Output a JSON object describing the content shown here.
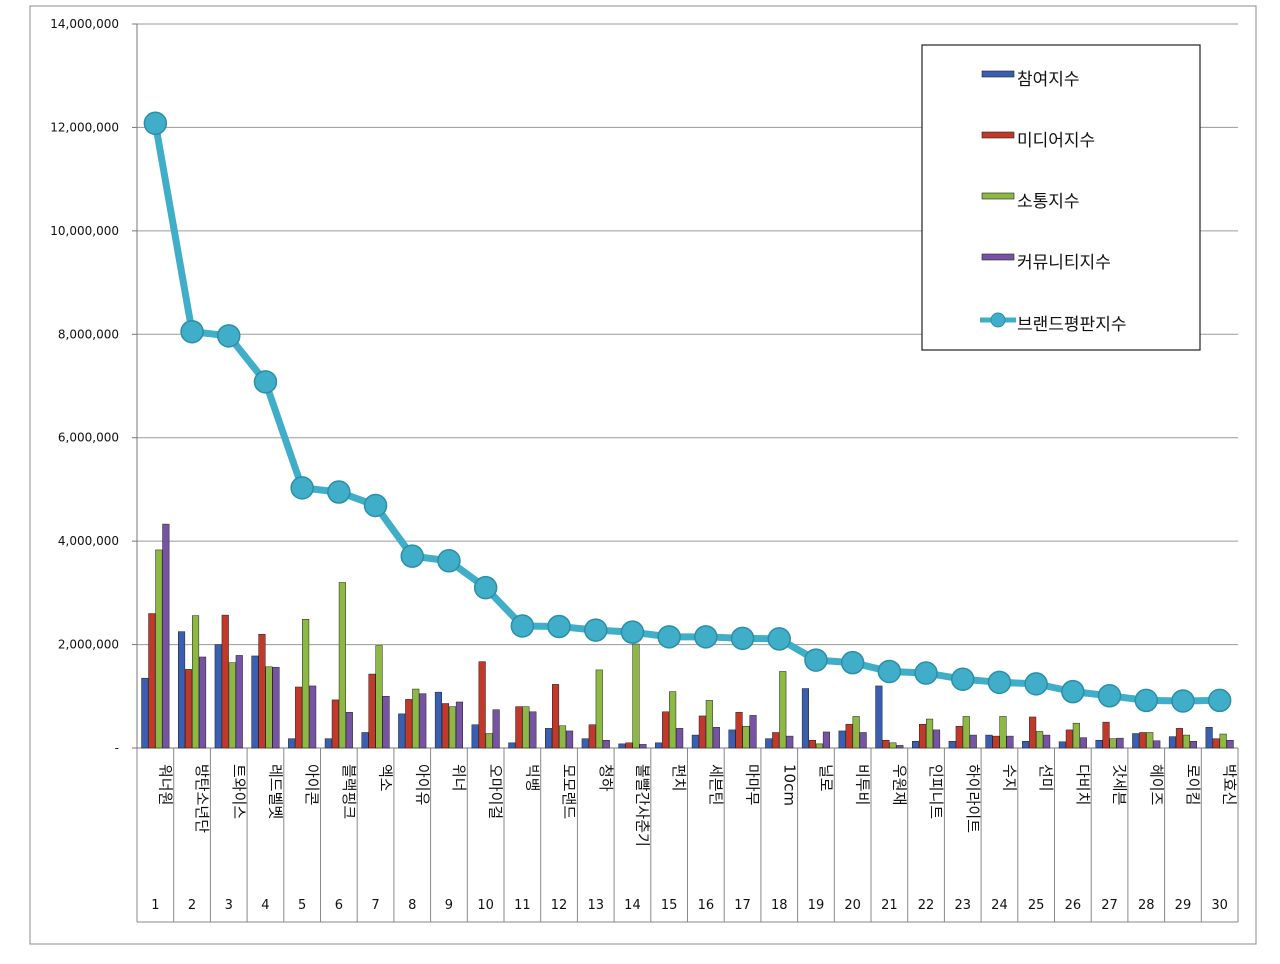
{
  "chart_data": {
    "type": "bar",
    "ylim": [
      0,
      14000000
    ],
    "y_ticks": [
      "-",
      "2,000,000",
      "4,000,000",
      "6,000,000",
      "8,000,000",
      "10,000,000",
      "12,000,000",
      "14,000,000"
    ],
    "grid": true,
    "legend_position": "top-right",
    "categories": [
      "워너원",
      "방탄소년단",
      "트와이스",
      "레드벨벳",
      "아이콘",
      "블랙핑크",
      "엑소",
      "아이유",
      "위너",
      "오마이걸",
      "빅뱅",
      "모모랜드",
      "청하",
      "볼빨간사춘기",
      "펀치",
      "세븐틴",
      "마마무",
      "10cm",
      "닐로",
      "비투비",
      "우원재",
      "인피니트",
      "하이라이트",
      "수지",
      "선미",
      "다비치",
      "갓세븐",
      "헤이즈",
      "로이킴",
      "박효신"
    ],
    "ranks": [
      "1",
      "2",
      "3",
      "4",
      "5",
      "6",
      "7",
      "8",
      "9",
      "10",
      "11",
      "12",
      "13",
      "14",
      "15",
      "16",
      "17",
      "18",
      "19",
      "20",
      "21",
      "22",
      "23",
      "24",
      "25",
      "26",
      "27",
      "28",
      "29",
      "30"
    ],
    "series": [
      {
        "name": "참여지수",
        "kind": "bar",
        "color": "#3a5fb0",
        "values": [
          1350000,
          2250000,
          2000000,
          1780000,
          180000,
          180000,
          300000,
          660000,
          1080000,
          450000,
          100000,
          380000,
          180000,
          80000,
          100000,
          250000,
          350000,
          180000,
          1150000,
          330000,
          1200000,
          130000,
          130000,
          250000,
          130000,
          120000,
          150000,
          280000,
          220000,
          400000
        ]
      },
      {
        "name": "미디어지수",
        "kind": "bar",
        "color": "#c0392b",
        "values": [
          2600000,
          1520000,
          2570000,
          2200000,
          1180000,
          930000,
          1430000,
          940000,
          860000,
          1670000,
          800000,
          1230000,
          450000,
          100000,
          700000,
          620000,
          690000,
          300000,
          150000,
          460000,
          150000,
          460000,
          420000,
          230000,
          600000,
          350000,
          500000,
          300000,
          380000,
          180000
        ]
      },
      {
        "name": "소통지수",
        "kind": "bar",
        "color": "#8db843",
        "values": [
          3830000,
          2560000,
          1650000,
          1570000,
          2490000,
          3200000,
          1980000,
          1140000,
          800000,
          280000,
          800000,
          430000,
          1510000,
          2010000,
          1090000,
          920000,
          420000,
          1480000,
          80000,
          610000,
          100000,
          560000,
          610000,
          610000,
          320000,
          480000,
          180000,
          300000,
          250000,
          270000
        ]
      },
      {
        "name": "커뮤니티지수",
        "kind": "bar",
        "color": "#7754a3",
        "values": [
          4330000,
          1760000,
          1790000,
          1560000,
          1200000,
          690000,
          1000000,
          1050000,
          890000,
          740000,
          700000,
          330000,
          150000,
          70000,
          380000,
          400000,
          630000,
          230000,
          310000,
          300000,
          50000,
          350000,
          250000,
          230000,
          250000,
          200000,
          190000,
          140000,
          130000,
          150000
        ]
      },
      {
        "name": "브랜드평판지수",
        "kind": "line",
        "color": "#40aec8",
        "values": [
          12080000,
          8050000,
          7970000,
          7080000,
          5030000,
          4950000,
          4690000,
          3710000,
          3620000,
          3100000,
          2360000,
          2350000,
          2280000,
          2240000,
          2150000,
          2150000,
          2120000,
          2110000,
          1700000,
          1650000,
          1480000,
          1450000,
          1330000,
          1270000,
          1240000,
          1090000,
          1010000,
          920000,
          910000,
          920000
        ]
      }
    ]
  }
}
